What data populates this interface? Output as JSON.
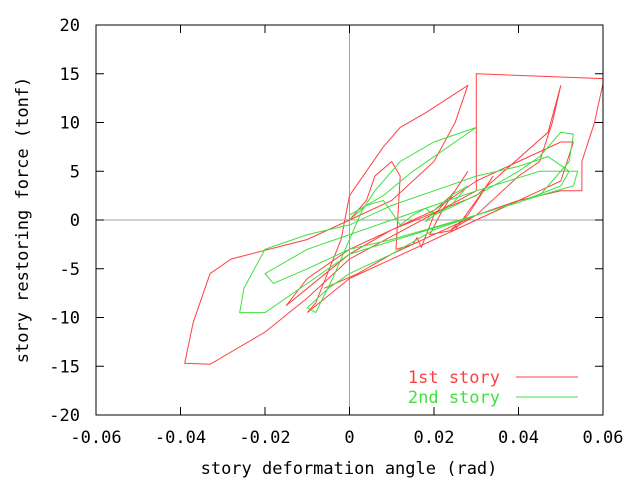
{
  "chart_data": {
    "type": "line",
    "title": "",
    "xlabel": "story deformation angle (rad)",
    "ylabel": "story restoring force (tonf)",
    "xlim": [
      -0.06,
      0.06
    ],
    "ylim": [
      -20,
      20
    ],
    "xticks": [
      -0.06,
      -0.04,
      -0.02,
      0,
      0.02,
      0.04,
      0.06
    ],
    "xtick_labels": [
      "-0.06",
      "-0.04",
      "-0.02",
      "0",
      "0.02",
      "0.04",
      "0.06"
    ],
    "yticks": [
      -20,
      -15,
      -10,
      -5,
      0,
      5,
      10,
      15,
      20
    ],
    "ytick_labels": [
      "-20",
      "-15",
      "-10",
      "-5",
      "0",
      "5",
      "10",
      "15",
      "20"
    ],
    "grid": false,
    "zero_lines": true,
    "legend": "bottom-right",
    "series": [
      {
        "name": "1st story",
        "color": "#ff4040",
        "points": [
          [
            0.0,
            0.0
          ],
          [
            0.004,
            2.0
          ],
          [
            0.006,
            4.5
          ],
          [
            0.01,
            6.0
          ],
          [
            0.012,
            4.5
          ],
          [
            0.011,
            -3.0
          ],
          [
            0.015,
            -2.5
          ],
          [
            0.016,
            -1.8
          ],
          [
            0.017,
            -2.8
          ],
          [
            0.02,
            0.5
          ],
          [
            0.025,
            3.0
          ],
          [
            0.028,
            5.0
          ],
          [
            0.022,
            1.0
          ],
          [
            0.019,
            -1.5
          ],
          [
            0.025,
            -1.0
          ],
          [
            0.03,
            2.0
          ],
          [
            0.034,
            4.5
          ],
          [
            0.028,
            0.5
          ],
          [
            0.024,
            -1.0
          ],
          [
            0.03,
            0.5
          ],
          [
            0.04,
            4.5
          ],
          [
            0.045,
            6.0
          ],
          [
            0.048,
            10.0
          ],
          [
            0.05,
            13.8
          ],
          [
            0.047,
            9.0
          ],
          [
            0.03,
            2.5
          ],
          [
            0.01,
            -1.0
          ],
          [
            0.0,
            -3.5
          ],
          [
            -0.01,
            -7.0
          ],
          [
            -0.015,
            -8.8
          ],
          [
            -0.01,
            -6.0
          ],
          [
            0.0,
            -3.0
          ],
          [
            0.01,
            -1.0
          ],
          [
            0.02,
            1.0
          ],
          [
            0.03,
            4.0
          ],
          [
            0.04,
            6.0
          ],
          [
            0.05,
            8.0
          ],
          [
            0.053,
            8.0
          ],
          [
            0.05,
            4.0
          ],
          [
            0.045,
            3.0
          ],
          [
            0.03,
            0.0
          ],
          [
            0.015,
            -3.0
          ],
          [
            0.0,
            -6.0
          ],
          [
            -0.01,
            -9.5
          ],
          [
            -0.008,
            -8.5
          ],
          [
            -0.002,
            -2.0
          ],
          [
            0.0,
            2.5
          ],
          [
            0.008,
            7.5
          ],
          [
            0.012,
            9.5
          ],
          [
            0.018,
            11.0
          ],
          [
            0.028,
            13.8
          ],
          [
            0.025,
            10.0
          ],
          [
            0.02,
            6.0
          ],
          [
            0.01,
            2.0
          ],
          [
            0.0,
            0.0
          ],
          [
            -0.01,
            -2.0
          ],
          [
            -0.028,
            -4.0
          ],
          [
            -0.033,
            -5.5
          ],
          [
            -0.037,
            -10.5
          ],
          [
            -0.039,
            -14.7
          ],
          [
            -0.033,
            -14.8
          ],
          [
            -0.02,
            -11.5
          ],
          [
            -0.01,
            -8.0
          ],
          [
            0.0,
            -4.0
          ],
          [
            0.015,
            -0.5
          ],
          [
            0.03,
            3.0
          ],
          [
            0.03,
            15.0
          ],
          [
            0.06,
            14.5
          ],
          [
            0.06,
            14.0
          ],
          [
            0.058,
            10.0
          ],
          [
            0.055,
            6.0
          ],
          [
            0.055,
            3.0
          ],
          [
            0.05,
            3.0
          ],
          [
            0.04,
            2.0
          ],
          [
            0.03,
            0.5
          ],
          [
            0.01,
            -3.5
          ],
          [
            0.002,
            -5.5
          ],
          [
            -0.006,
            -7.0
          ]
        ]
      },
      {
        "name": "2nd story",
        "color": "#40e040",
        "points": [
          [
            0.0,
            0.0
          ],
          [
            0.004,
            1.5
          ],
          [
            0.008,
            2.0
          ],
          [
            0.01,
            0.8
          ],
          [
            0.012,
            -0.5
          ],
          [
            0.015,
            0.5
          ],
          [
            0.018,
            1.2
          ],
          [
            0.02,
            0.5
          ],
          [
            0.018,
            -0.2
          ],
          [
            0.02,
            1.0
          ],
          [
            0.024,
            2.5
          ],
          [
            0.028,
            3.5
          ],
          [
            0.024,
            1.5
          ],
          [
            0.02,
            0.5
          ],
          [
            0.025,
            1.5
          ],
          [
            0.032,
            3.0
          ],
          [
            0.04,
            5.0
          ],
          [
            0.045,
            6.5
          ],
          [
            0.05,
            9.0
          ],
          [
            0.053,
            8.8
          ],
          [
            0.052,
            6.0
          ],
          [
            0.048,
            4.0
          ],
          [
            0.045,
            2.5
          ],
          [
            0.03,
            0.5
          ],
          [
            0.01,
            -2.0
          ],
          [
            0.0,
            -3.0
          ],
          [
            -0.01,
            -5.0
          ],
          [
            -0.018,
            -6.5
          ],
          [
            -0.02,
            -5.5
          ],
          [
            -0.01,
            -3.0
          ],
          [
            0.0,
            -1.5
          ],
          [
            0.01,
            0.0
          ],
          [
            0.02,
            1.5
          ],
          [
            0.03,
            3.0
          ],
          [
            0.045,
            5.0
          ],
          [
            0.054,
            5.0
          ],
          [
            0.053,
            3.5
          ],
          [
            0.045,
            2.5
          ],
          [
            0.03,
            0.5
          ],
          [
            0.015,
            -1.5
          ],
          [
            0.0,
            -3.5
          ],
          [
            -0.01,
            -6.5
          ],
          [
            -0.02,
            -9.5
          ],
          [
            -0.026,
            -9.5
          ],
          [
            -0.025,
            -7.0
          ],
          [
            -0.02,
            -3.0
          ],
          [
            -0.01,
            -1.5
          ],
          [
            0.0,
            -0.5
          ],
          [
            0.01,
            1.5
          ],
          [
            0.02,
            3.0
          ],
          [
            0.03,
            4.5
          ],
          [
            0.04,
            5.5
          ],
          [
            0.047,
            6.5
          ],
          [
            0.052,
            5.0
          ],
          [
            0.05,
            3.5
          ],
          [
            0.04,
            1.8
          ],
          [
            0.03,
            0.5
          ],
          [
            0.02,
            -1.0
          ],
          [
            0.01,
            -3.5
          ],
          [
            0.0,
            -5.5
          ],
          [
            -0.005,
            -7.0
          ],
          [
            -0.01,
            -9.0
          ],
          [
            -0.008,
            -9.5
          ],
          [
            -0.004,
            -6.0
          ],
          [
            0.0,
            -2.0
          ],
          [
            0.003,
            1.0
          ],
          [
            0.006,
            3.0
          ],
          [
            0.012,
            6.0
          ],
          [
            0.02,
            8.0
          ],
          [
            0.03,
            9.5
          ],
          [
            0.015,
            5.0
          ],
          [
            0.008,
            2.5
          ],
          [
            0.0,
            0.5
          ]
        ]
      }
    ]
  }
}
